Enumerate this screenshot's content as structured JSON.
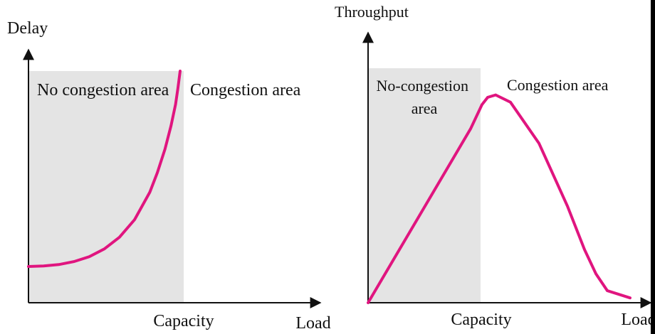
{
  "colors": {
    "shade": "#e4e4e4",
    "curve": "#e0157f",
    "axis": "#111111",
    "edge": "#000000"
  },
  "chart_data": [
    {
      "type": "line",
      "title": "",
      "ylabel": "Delay",
      "xlabel": "Load",
      "x_tick": "Capacity",
      "regions": [
        "No congestion area",
        "Congestion area"
      ],
      "series": [
        {
          "x": [
            0,
            0.1,
            0.2,
            0.3,
            0.4,
            0.5,
            0.6,
            0.7,
            0.8,
            0.85,
            0.9,
            0.94,
            0.97,
            0.985,
            1.0
          ],
          "y": [
            0.0,
            0.003,
            0.01,
            0.025,
            0.05,
            0.09,
            0.15,
            0.24,
            0.38,
            0.48,
            0.6,
            0.72,
            0.83,
            0.91,
            1.0
          ]
        }
      ]
    },
    {
      "type": "line",
      "title": "",
      "ylabel": "Throughput",
      "xlabel": "Load",
      "x_tick": "Capacity",
      "regions": [
        "No-congestion area",
        "Congestion area"
      ],
      "series": [
        {
          "x": [
            0,
            0.25,
            0.5,
            0.75,
            0.9,
            1.0,
            1.05,
            1.12,
            1.25,
            1.5,
            1.75,
            1.9,
            2.0,
            2.1,
            2.3
          ],
          "y": [
            0,
            0.2,
            0.4,
            0.6,
            0.72,
            0.82,
            0.85,
            0.86,
            0.83,
            0.66,
            0.4,
            0.22,
            0.12,
            0.05,
            0.02
          ]
        }
      ]
    }
  ]
}
